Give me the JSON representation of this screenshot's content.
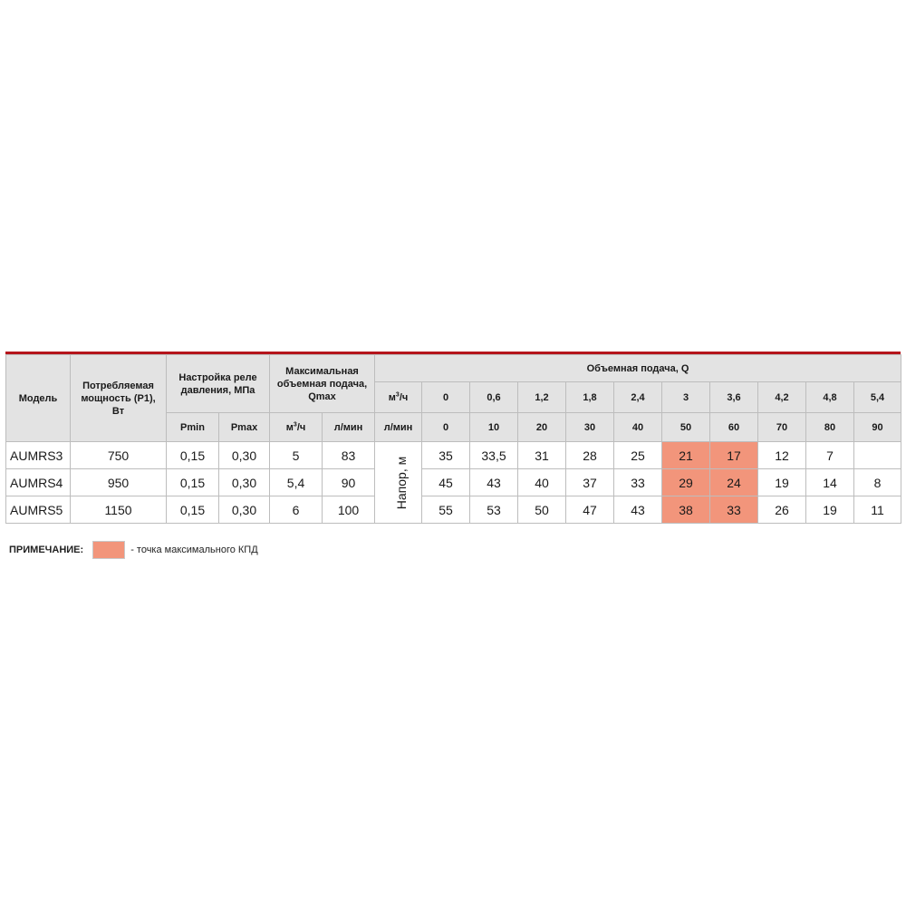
{
  "table": {
    "headers": {
      "model": "Модель",
      "power": "Потребляемая мощность (P1), Вт",
      "relay": "Настройка реле давления, МПа",
      "qmax": "Максимальная объемная подача, Qmax",
      "flow": "Объемная подача, Q",
      "pmin": "Pmin",
      "pmax": "Pmax",
      "m3h_unit_base": "м",
      "m3h_unit_sup": "3",
      "m3h_unit_tail": "/ч",
      "lmin_unit": "л/мин",
      "head_label": "Напор, м"
    },
    "flow_m3h": [
      "0",
      "0,6",
      "1,2",
      "1,8",
      "2,4",
      "3",
      "3,6",
      "4,2",
      "4,8",
      "5,4"
    ],
    "flow_lmin": [
      "0",
      "10",
      "20",
      "30",
      "40",
      "50",
      "60",
      "70",
      "80",
      "90"
    ],
    "rows": [
      {
        "model": "AUMRS3",
        "power": "750",
        "pmin": "0,15",
        "pmax": "0,30",
        "qmax_m3h": "5",
        "qmax_lmin": "83",
        "heads": [
          "35",
          "33,5",
          "31",
          "28",
          "25",
          "21",
          "17",
          "12",
          "7",
          ""
        ]
      },
      {
        "model": "AUMRS4",
        "power": "950",
        "pmin": "0,15",
        "pmax": "0,30",
        "qmax_m3h": "5,4",
        "qmax_lmin": "90",
        "heads": [
          "45",
          "43",
          "40",
          "37",
          "33",
          "29",
          "24",
          "19",
          "14",
          "8"
        ]
      },
      {
        "model": "AUMRS5",
        "power": "1150",
        "pmin": "0,15",
        "pmax": "0,30",
        "qmax_m3h": "6",
        "qmax_lmin": "100",
        "heads": [
          "55",
          "53",
          "50",
          "47",
          "43",
          "38",
          "33",
          "26",
          "19",
          "11"
        ]
      }
    ],
    "highlight_columns": [
      5,
      6
    ],
    "highlight_color": "#f2957b",
    "accent_color": "#b5151b"
  },
  "note": {
    "title": "ПРИМЕЧАНИЕ:",
    "text": "- точка максимального КПД"
  }
}
